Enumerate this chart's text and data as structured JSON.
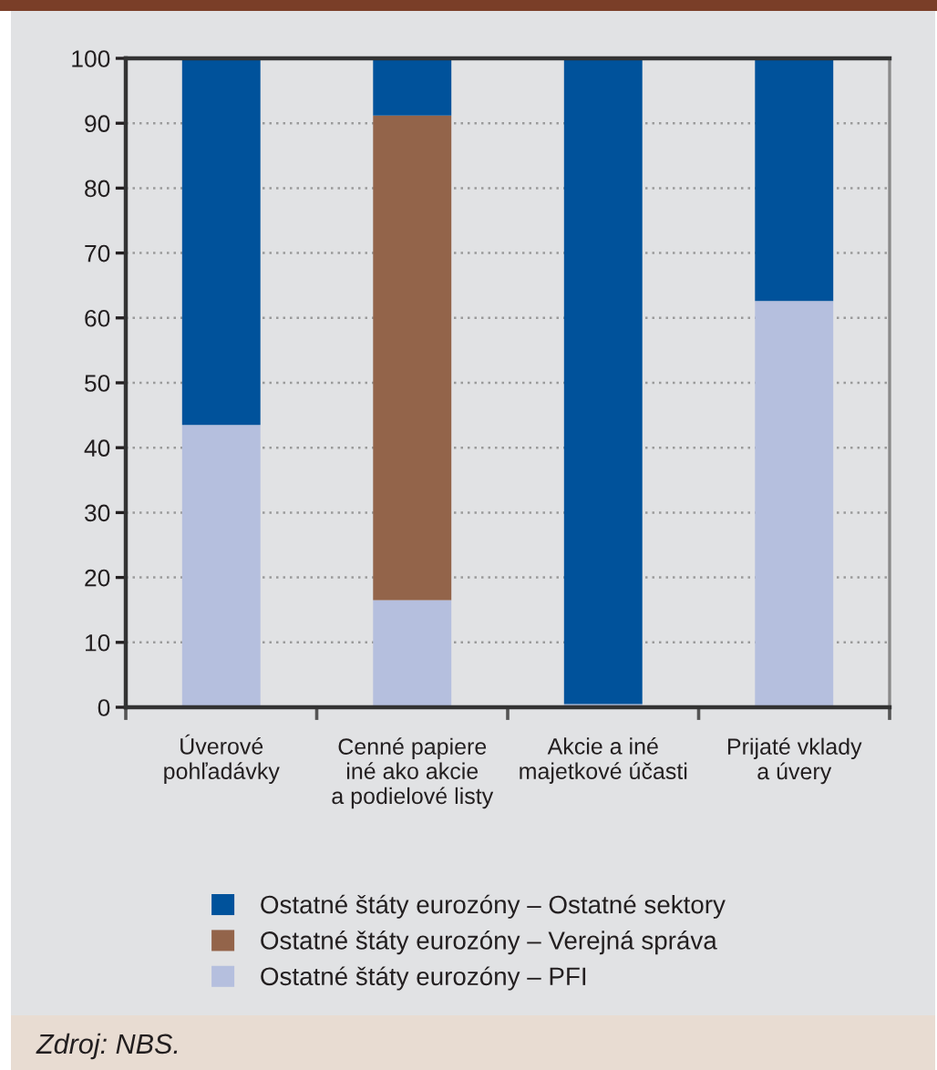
{
  "chart_data": {
    "type": "bar",
    "stacked": true,
    "categories": [
      "Úverové\npohľadávky",
      "Cenné papiere\niné ako akcie\na podielové listy",
      "Akcie a iné\nmajetkové účasti",
      "Prijaté vklady\na úvery"
    ],
    "series": [
      {
        "name": "Ostatné štáty eurozóny – PFI",
        "color": "#b5bfde",
        "values": [
          43.5,
          16.5,
          0.5,
          62.6
        ]
      },
      {
        "name": "Ostatné štáty eurozóny – Verejná správa",
        "color": "#93644a",
        "values": [
          null,
          74.7,
          null,
          null
        ]
      },
      {
        "name": "Ostatné štáty eurozóny – Ostatné sektory",
        "color": "#00529b",
        "values": [
          56.5,
          8.8,
          99.5,
          37.4
        ]
      }
    ],
    "ylim": [
      0,
      100
    ],
    "yticks": [
      0,
      10,
      20,
      30,
      40,
      50,
      60,
      70,
      80,
      90,
      100
    ],
    "grid": "y",
    "legend": "bottom",
    "annotations": [
      "Zdroj: NBS."
    ]
  }
}
